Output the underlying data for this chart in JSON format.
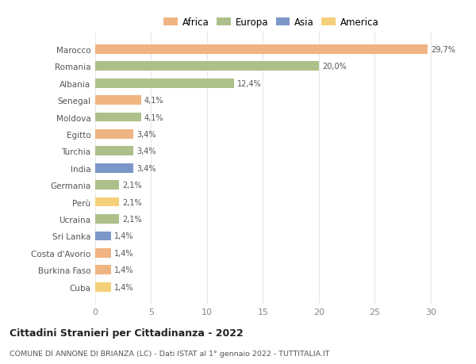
{
  "countries": [
    "Marocco",
    "Romania",
    "Albania",
    "Senegal",
    "Moldova",
    "Egitto",
    "Turchia",
    "India",
    "Germania",
    "Perù",
    "Ucraina",
    "Sri Lanka",
    "Costa d'Avorio",
    "Burkina Faso",
    "Cuba"
  ],
  "values": [
    29.7,
    20.0,
    12.4,
    4.1,
    4.1,
    3.4,
    3.4,
    3.4,
    2.1,
    2.1,
    2.1,
    1.4,
    1.4,
    1.4,
    1.4
  ],
  "labels": [
    "29,7%",
    "20,0%",
    "12,4%",
    "4,1%",
    "4,1%",
    "3,4%",
    "3,4%",
    "3,4%",
    "2,1%",
    "2,1%",
    "2,1%",
    "1,4%",
    "1,4%",
    "1,4%",
    "1,4%"
  ],
  "colors": [
    "#f0b482",
    "#adc08a",
    "#adc08a",
    "#f0b482",
    "#adc08a",
    "#f0b482",
    "#adc08a",
    "#7b96c8",
    "#adc08a",
    "#f5d07a",
    "#adc08a",
    "#7b96c8",
    "#f0b482",
    "#f0b482",
    "#f5d07a"
  ],
  "legend_labels": [
    "Africa",
    "Europa",
    "Asia",
    "America"
  ],
  "legend_colors": [
    "#f0b482",
    "#adc08a",
    "#7b96c8",
    "#f5d07a"
  ],
  "title": "Cittadini Stranieri per Cittadinanza - 2022",
  "subtitle": "COMUNE DI ANNONE DI BRIANZA (LC) - Dati ISTAT al 1° gennaio 2022 - TUTTITALIA.IT",
  "xlim": [
    0,
    31.5
  ],
  "xticks": [
    0,
    5,
    10,
    15,
    20,
    25,
    30
  ],
  "bg_color": "#ffffff",
  "grid_color": "#e8e8e8",
  "bar_height": 0.55
}
